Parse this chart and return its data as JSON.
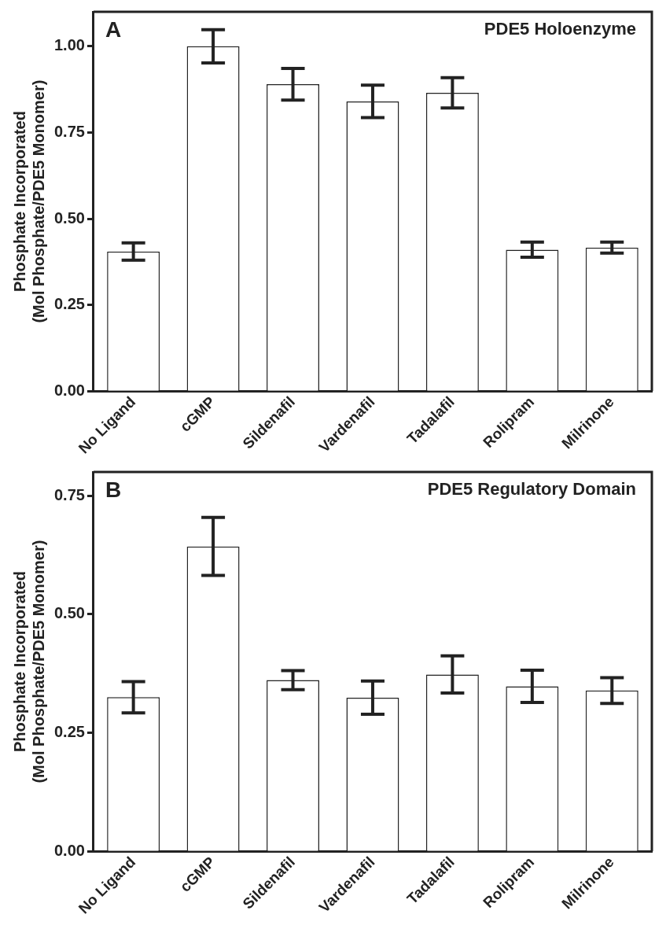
{
  "chart_data": [
    {
      "type": "bar",
      "title": "PDE5 Holoenzyme",
      "ylabel": "Phosphate Incorporated\n(Mol Phosphate/PDE5 Monomer)",
      "annotations": [
        "A"
      ],
      "categories": [
        "No Ligand",
        "cGMP",
        "Sildenafil",
        "Vardenafil",
        "Tadalafil",
        "Rolipram",
        "Milrinone"
      ],
      "values": [
        0.405,
        1.0,
        0.89,
        0.84,
        0.865,
        0.41,
        0.416
      ],
      "errors": [
        0.025,
        0.048,
        0.046,
        0.047,
        0.044,
        0.022,
        0.016
      ],
      "color": "#ffffff",
      "ylim": [
        0,
        1.1
      ],
      "yticks": [
        {
          "value": 0,
          "label": "0.00"
        },
        {
          "value": 0.25,
          "label": "0.25"
        },
        {
          "value": 0.5,
          "label": "0.50"
        },
        {
          "value": 0.75,
          "label": "0.75"
        },
        {
          "value": 1,
          "label": "1.00"
        }
      ],
      "grid": false,
      "legend": false
    },
    {
      "type": "bar",
      "title": "PDE5 Regulatory Domain",
      "ylabel": "Phosphate Incorporated\n(Mol Phosphate/PDE5 Monomer)",
      "annotations": [
        "B"
      ],
      "categories": [
        "No Ligand",
        "cGMP",
        "Sildenafil",
        "Vardenafil",
        "Tadalafil",
        "Rolipram",
        "Milrinone"
      ],
      "values": [
        0.325,
        0.643,
        0.361,
        0.324,
        0.373,
        0.348,
        0.339
      ],
      "errors": [
        0.033,
        0.061,
        0.02,
        0.035,
        0.039,
        0.034,
        0.027
      ],
      "color": "#ffffff",
      "ylim": [
        0,
        0.8
      ],
      "yticks": [
        {
          "value": 0,
          "label": "0.00"
        },
        {
          "value": 0.25,
          "label": "0.25"
        },
        {
          "value": 0.5,
          "label": "0.50"
        },
        {
          "value": 0.75,
          "label": "0.75"
        }
      ],
      "grid": false,
      "legend": false
    }
  ]
}
